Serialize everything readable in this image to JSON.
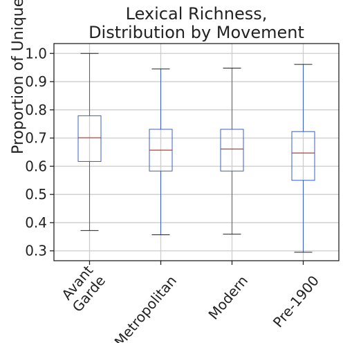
{
  "chart_data": {
    "type": "box",
    "title": [
      "Lexical Richness,",
      "Distribution by Movement"
    ],
    "ylabel": "Proportion of Unique Words",
    "xlabel": "",
    "ylim": [
      0.265,
      1.035
    ],
    "yticks": [
      0.3,
      0.4,
      0.5,
      0.6,
      0.7,
      0.8,
      0.9,
      1.0
    ],
    "ytick_labels": [
      "0.3",
      "0.4",
      "0.5",
      "0.6",
      "0.7",
      "0.8",
      "0.9",
      "1.0"
    ],
    "grid": true,
    "categories": [
      [
        "Avant",
        "Garde"
      ],
      [
        "Metropolitan"
      ],
      [
        "Modern"
      ],
      [
        "Pre-1900"
      ]
    ],
    "boxes": [
      {
        "whisker_low": 0.372,
        "q1": 0.617,
        "median": 0.701,
        "q3": 0.779,
        "whisker_high": 1.0
      },
      {
        "whisker_low": 0.357,
        "q1": 0.583,
        "median": 0.657,
        "q3": 0.731,
        "whisker_high": 0.945
      },
      {
        "whisker_low": 0.359,
        "q1": 0.583,
        "median": 0.661,
        "q3": 0.731,
        "whisker_high": 0.948
      },
      {
        "whisker_low": 0.295,
        "q1": 0.55,
        "median": 0.647,
        "q3": 0.723,
        "whisker_high": 0.961
      }
    ],
    "colors": {
      "box": "#3b5fc0",
      "median": "#c0392b",
      "cap": "#222222",
      "grid": "#cccccc",
      "axis": "#222222"
    }
  }
}
